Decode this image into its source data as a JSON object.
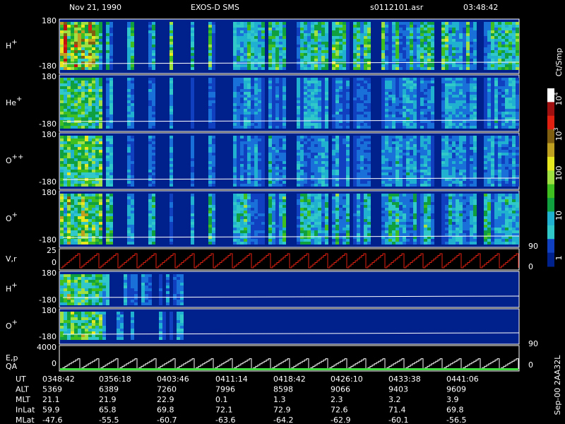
{
  "header": {
    "date": "Nov 21, 1990",
    "instrument": "EXOS-D SMS",
    "file": "s0112101.asr",
    "time": "03:48:42"
  },
  "panels": [
    {
      "ion": "H",
      "charge": "+",
      "top": "180",
      "bottom": "-180"
    },
    {
      "ion": "He",
      "charge": "+",
      "top": "180",
      "bottom": "-180"
    },
    {
      "ion": "O",
      "charge": "++",
      "top": "180",
      "bottom": "-180"
    },
    {
      "ion": "O",
      "charge": "+",
      "top": "180",
      "bottom": "-180"
    },
    {
      "ion": "V,r",
      "charge": "",
      "top": "25",
      "bottom": "0"
    },
    {
      "ion": "H",
      "charge": "+",
      "top": "180",
      "bottom": "-180"
    },
    {
      "ion": "O",
      "charge": "+",
      "top": "180",
      "bottom": "-180"
    },
    {
      "ion": "E,p",
      "extra": "QA",
      "charge": "",
      "top": "4000",
      "bottom": "0"
    }
  ],
  "right_axis": [
    "90",
    "0",
    "90",
    "0"
  ],
  "colorbar": {
    "unit": "Ct/Smp",
    "labels": [
      {
        "base": "10",
        "exp": "4"
      },
      {
        "base": "10",
        "exp": "3"
      },
      {
        "base": "100"
      },
      {
        "base": "10"
      },
      {
        "base": "1"
      }
    ]
  },
  "footer": "Sep-00 2AA32L",
  "table": {
    "rows": [
      [
        "UT",
        "0348:42",
        "0356:18",
        "0403:46",
        "0411:14",
        "0418:42",
        "0426:10",
        "0433:38",
        "0441:06"
      ],
      [
        "ALT",
        "5369",
        "6389",
        "7260",
        "7996",
        "8598",
        "9066",
        "9403",
        "9609"
      ],
      [
        "MLT",
        "21.1",
        "21.9",
        "22.9",
        "0.1",
        "1.3",
        "2.3",
        "3.2",
        "3.9"
      ],
      [
        "InLat",
        "59.9",
        "65.8",
        "69.8",
        "72.1",
        "72.9",
        "72.6",
        "71.4",
        "69.8"
      ],
      [
        "MLat",
        "-47.6",
        "-55.5",
        "-60.7",
        "-63.6",
        "-64.2",
        "-62.9",
        "-60.1",
        "-56.5"
      ]
    ]
  }
}
